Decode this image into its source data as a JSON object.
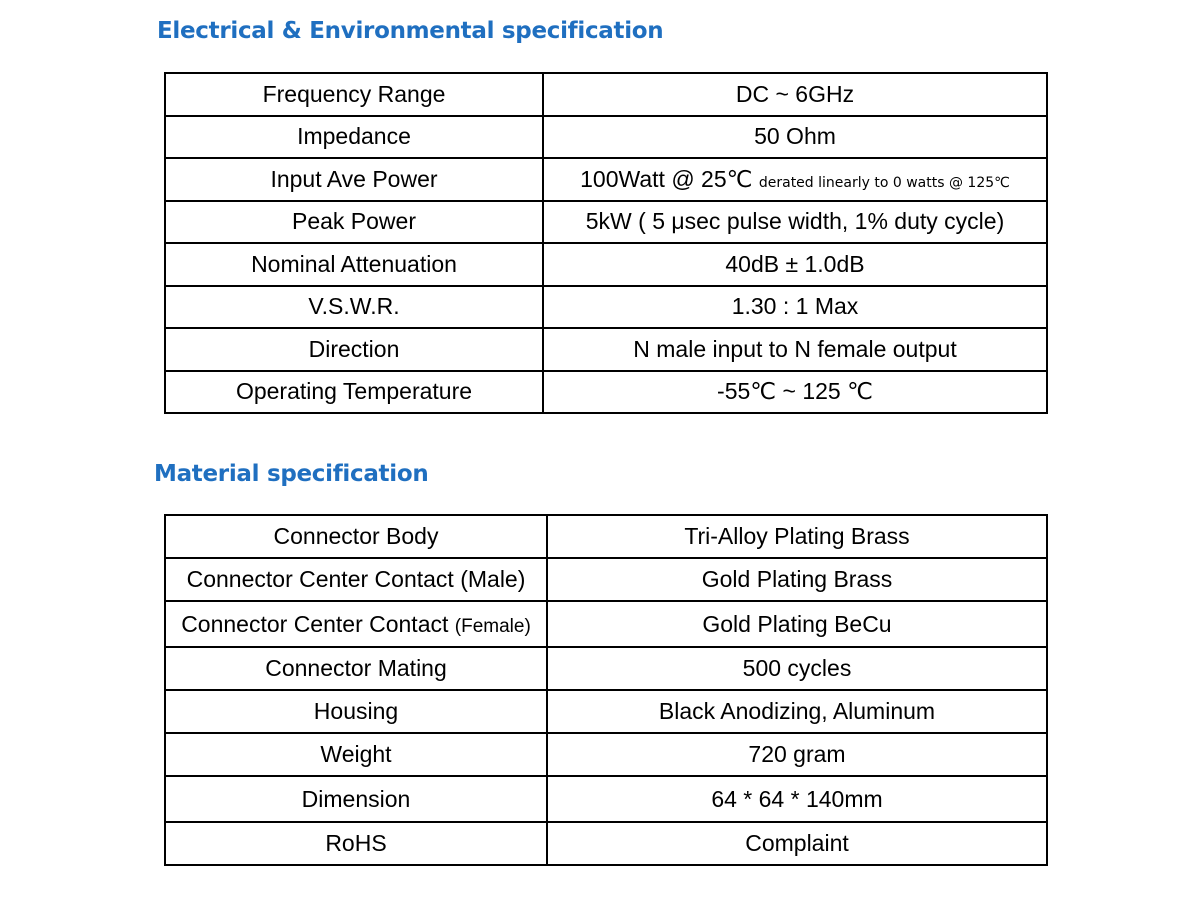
{
  "electrical": {
    "title": "Electrical & Environmental specification",
    "rows": [
      {
        "label": "Frequency Range",
        "value": "DC ~ 6GHz"
      },
      {
        "label": "Impedance",
        "value": "50 Ohm"
      },
      {
        "label": "Input Ave Power",
        "value": "100Watt @ 25℃",
        "note": "derated linearly to 0 watts @ 125℃"
      },
      {
        "label": "Peak Power",
        "value": "5kW ( 5 μsec pulse width, 1% duty cycle)"
      },
      {
        "label": "Nominal Attenuation",
        "value": "40dB ± 1.0dB"
      },
      {
        "label": "V.S.W.R.",
        "value": "1.30 : 1 Max"
      },
      {
        "label": "Direction",
        "value": "N male input to N female output"
      },
      {
        "label": "Operating Temperature",
        "value": "-55℃ ~ 125 ℃"
      }
    ]
  },
  "material": {
    "title": "Material specification",
    "rows": [
      {
        "label": "Connector Body",
        "value": "Tri-Alloy Plating Brass"
      },
      {
        "label": "Connector Center Contact",
        "label_suffix": "(Male)",
        "value": "Gold Plating Brass"
      },
      {
        "label": "Connector Center Contact",
        "label_suffix": "(Female)",
        "value": "Gold Plating BeCu"
      },
      {
        "label": "Connector Mating",
        "value": "500 cycles"
      },
      {
        "label": "Housing",
        "value": "Black Anodizing, Aluminum"
      },
      {
        "label": "Weight",
        "value": "720 gram"
      },
      {
        "label": "Dimension",
        "value": "64 * 64 * 140mm"
      },
      {
        "label": "RoHS",
        "value": "Complaint"
      }
    ]
  },
  "colors": {
    "title": "#1f6fc0",
    "border": "#000000",
    "text": "#000000"
  }
}
